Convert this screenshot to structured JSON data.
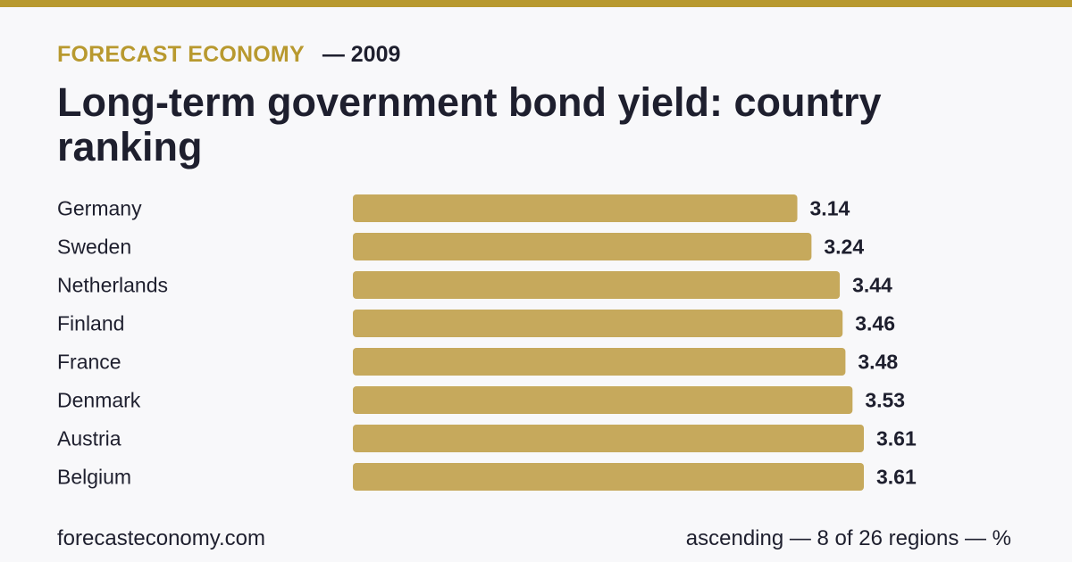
{
  "header": {
    "brand": "FORECAST ECONOMY",
    "year_text": "— 2009",
    "title": "Long-term government bond yield: country ranking"
  },
  "footer": {
    "site": "forecasteconomy.com",
    "note": "ascending — 8 of 26 regions — %"
  },
  "colors": {
    "accent": "#b8992f",
    "bar": "#c6a95c",
    "text": "#1e1f2e",
    "background": "#f8f8fa"
  },
  "chart_data": {
    "type": "bar",
    "orientation": "horizontal",
    "categories": [
      "Germany",
      "Sweden",
      "Netherlands",
      "Finland",
      "France",
      "Denmark",
      "Austria",
      "Belgium"
    ],
    "values": [
      3.14,
      3.24,
      3.44,
      3.46,
      3.48,
      3.53,
      3.61,
      3.61
    ],
    "value_labels": [
      "3.14",
      "3.24",
      "3.44",
      "3.46",
      "3.48",
      "3.53",
      "3.61",
      "3.61"
    ],
    "title": "Long-term government bond yield: country ranking",
    "unit": "%",
    "sort": "ascending",
    "xlim": [
      0,
      3.61
    ],
    "grid": false,
    "legend": "none"
  }
}
